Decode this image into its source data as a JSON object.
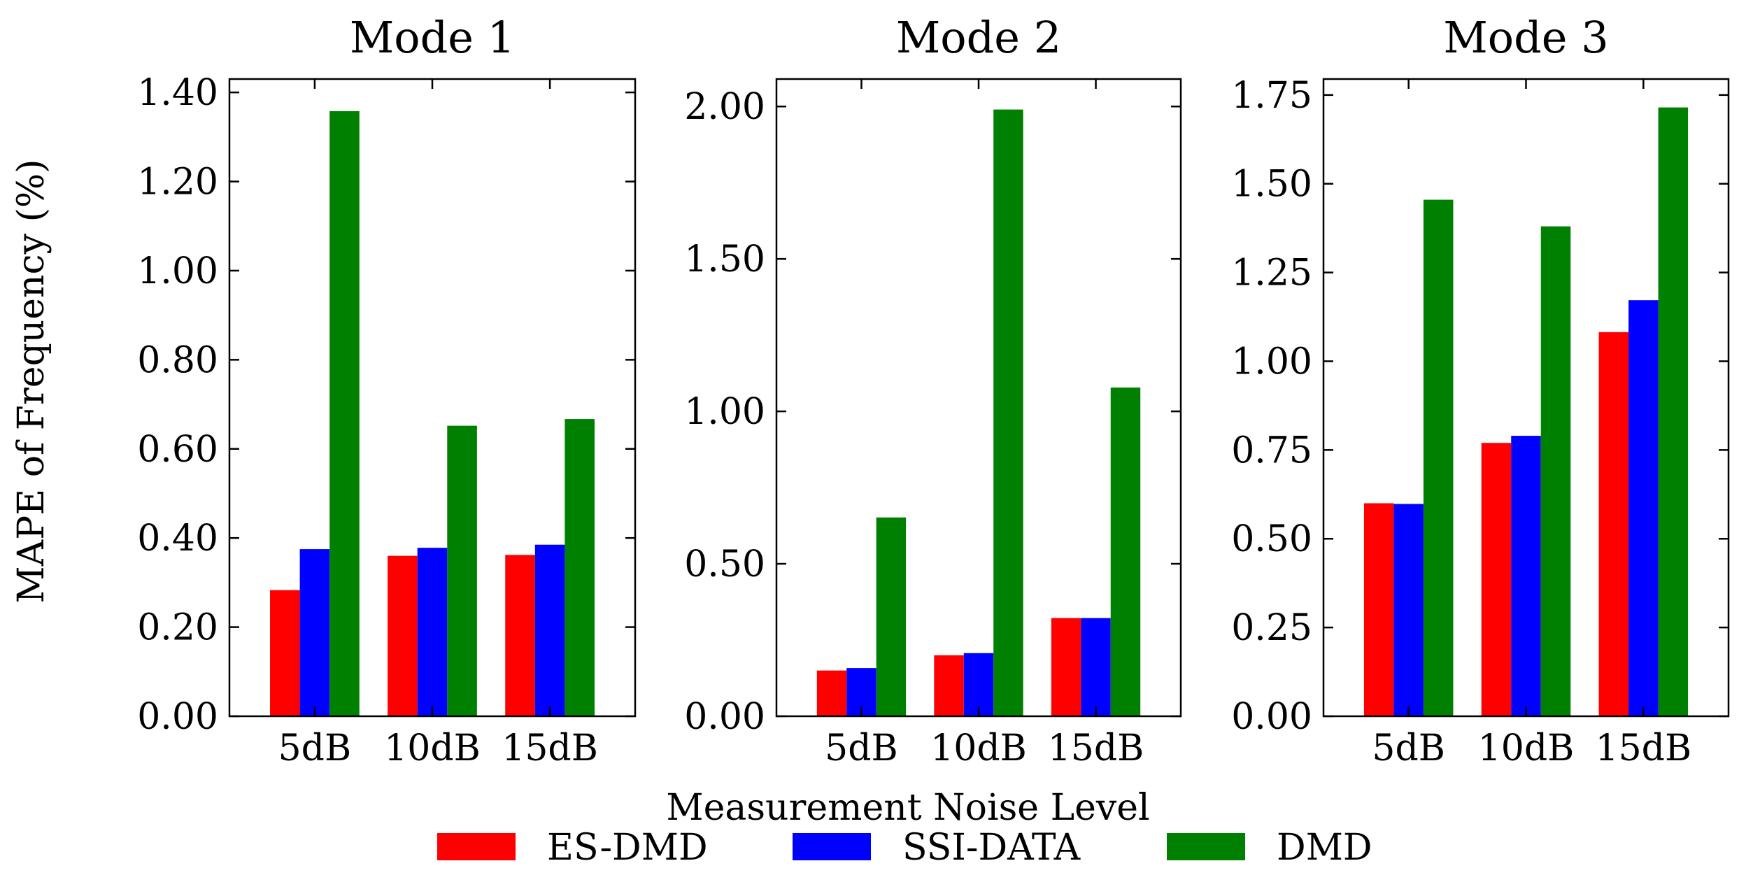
{
  "chart_data": {
    "type": "bar",
    "ylabel": "MAPE of Frequency (%)",
    "xlabel": "Measurement Noise Level",
    "categories": [
      "5dB",
      "10dB",
      "15dB"
    ],
    "legend": [
      {
        "name": "ES-DMD",
        "color": "#ff0000"
      },
      {
        "name": "SSI-DATA",
        "color": "#0000ff"
      },
      {
        "name": "DMD",
        "color": "#008000"
      }
    ],
    "panels": [
      {
        "title": "Mode 1",
        "ylim": [
          0,
          1.43
        ],
        "yticks": [
          0,
          0.2,
          0.4,
          0.6,
          0.8,
          1.0,
          1.2,
          1.4
        ],
        "ytick_labels": [
          "0.00",
          "0.20",
          "0.40",
          "0.60",
          "0.80",
          "1.00",
          "1.20",
          "1.40"
        ],
        "series": [
          {
            "name": "ES-DMD",
            "values": [
              0.283,
              0.36,
              0.362
            ]
          },
          {
            "name": "SSI-DATA",
            "values": [
              0.375,
              0.378,
              0.385
            ]
          },
          {
            "name": "DMD",
            "values": [
              1.358,
              0.652,
              0.667
            ]
          }
        ]
      },
      {
        "title": "Mode 2",
        "ylim": [
          0,
          2.09
        ],
        "yticks": [
          0,
          0.5,
          1.0,
          1.5,
          2.0
        ],
        "ytick_labels": [
          "0.00",
          "0.50",
          "1.00",
          "1.50",
          "2.00"
        ],
        "series": [
          {
            "name": "ES-DMD",
            "values": [
              0.15,
              0.2,
              0.322
            ]
          },
          {
            "name": "SSI-DATA",
            "values": [
              0.158,
              0.207,
              0.322
            ]
          },
          {
            "name": "DMD",
            "values": [
              0.652,
              1.99,
              1.078
            ]
          }
        ]
      },
      {
        "title": "Mode 3",
        "ylim": [
          0,
          1.795
        ],
        "yticks": [
          0,
          0.25,
          0.5,
          0.75,
          1.0,
          1.25,
          1.5,
          1.75
        ],
        "ytick_labels": [
          "0.00",
          "0.25",
          "0.50",
          "0.75",
          "1.00",
          "1.25",
          "1.50",
          "1.75"
        ],
        "series": [
          {
            "name": "ES-DMD",
            "values": [
              0.6,
              0.77,
              1.082
            ]
          },
          {
            "name": "SSI-DATA",
            "values": [
              0.598,
              0.79,
              1.172
            ]
          },
          {
            "name": "DMD",
            "values": [
              1.455,
              1.38,
              1.715
            ]
          }
        ]
      }
    ]
  }
}
